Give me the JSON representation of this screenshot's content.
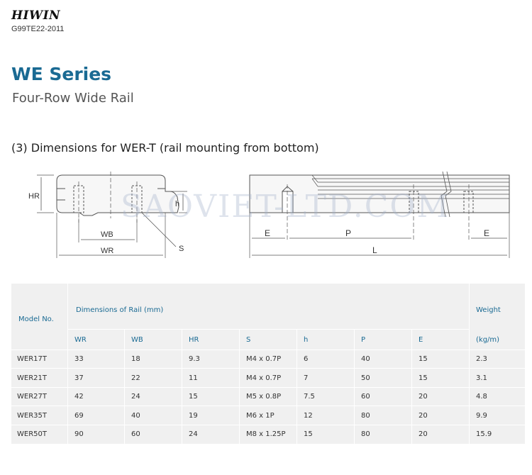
{
  "header": {
    "brand": "HIWIN",
    "doc_code": "G99TE22-2011"
  },
  "title": {
    "series": "WE Series",
    "subtitle": "Four-Row Wide Rail"
  },
  "section": {
    "heading": "(3) Dimensions for WER-T (rail mounting from bottom)"
  },
  "drawing": {
    "labels": {
      "hr": "HR",
      "h": "h",
      "wb": "WB",
      "wr": "WR",
      "s": "S",
      "e_left": "E",
      "p": "P",
      "e_right": "E",
      "l": "L"
    },
    "watermark": "SAOVIET-LTD.COM"
  },
  "table": {
    "model_header": "Model No.",
    "dims_header": "Dimensions of Rail (mm)",
    "weight_header": "Weight",
    "weight_unit": "(kg/m)",
    "columns": [
      "WR",
      "WB",
      "HR",
      "S",
      "h",
      "P",
      "E"
    ],
    "rows": [
      {
        "model": "WER17T",
        "wr": "33",
        "wb": "18",
        "hr": "9.3",
        "s": "M4 x 0.7P",
        "h": "6",
        "p": "40",
        "e": "15",
        "weight": "2.3"
      },
      {
        "model": "WER21T",
        "wr": "37",
        "wb": "22",
        "hr": "11",
        "s": "M4 x 0.7P",
        "h": "7",
        "p": "50",
        "e": "15",
        "weight": "3.1"
      },
      {
        "model": "WER27T",
        "wr": "42",
        "wb": "24",
        "hr": "15",
        "s": "M5 x 0.8P",
        "h": "7.5",
        "p": "60",
        "e": "20",
        "weight": "4.8"
      },
      {
        "model": "WER35T",
        "wr": "69",
        "wb": "40",
        "hr": "19",
        "s": "M6 x 1P",
        "h": "12",
        "p": "80",
        "e": "20",
        "weight": "9.9"
      },
      {
        "model": "WER50T",
        "wr": "90",
        "wb": "60",
        "hr": "24",
        "s": "M8 x 1.25P",
        "h": "15",
        "p": "80",
        "e": "20",
        "weight": "15.9"
      }
    ]
  }
}
